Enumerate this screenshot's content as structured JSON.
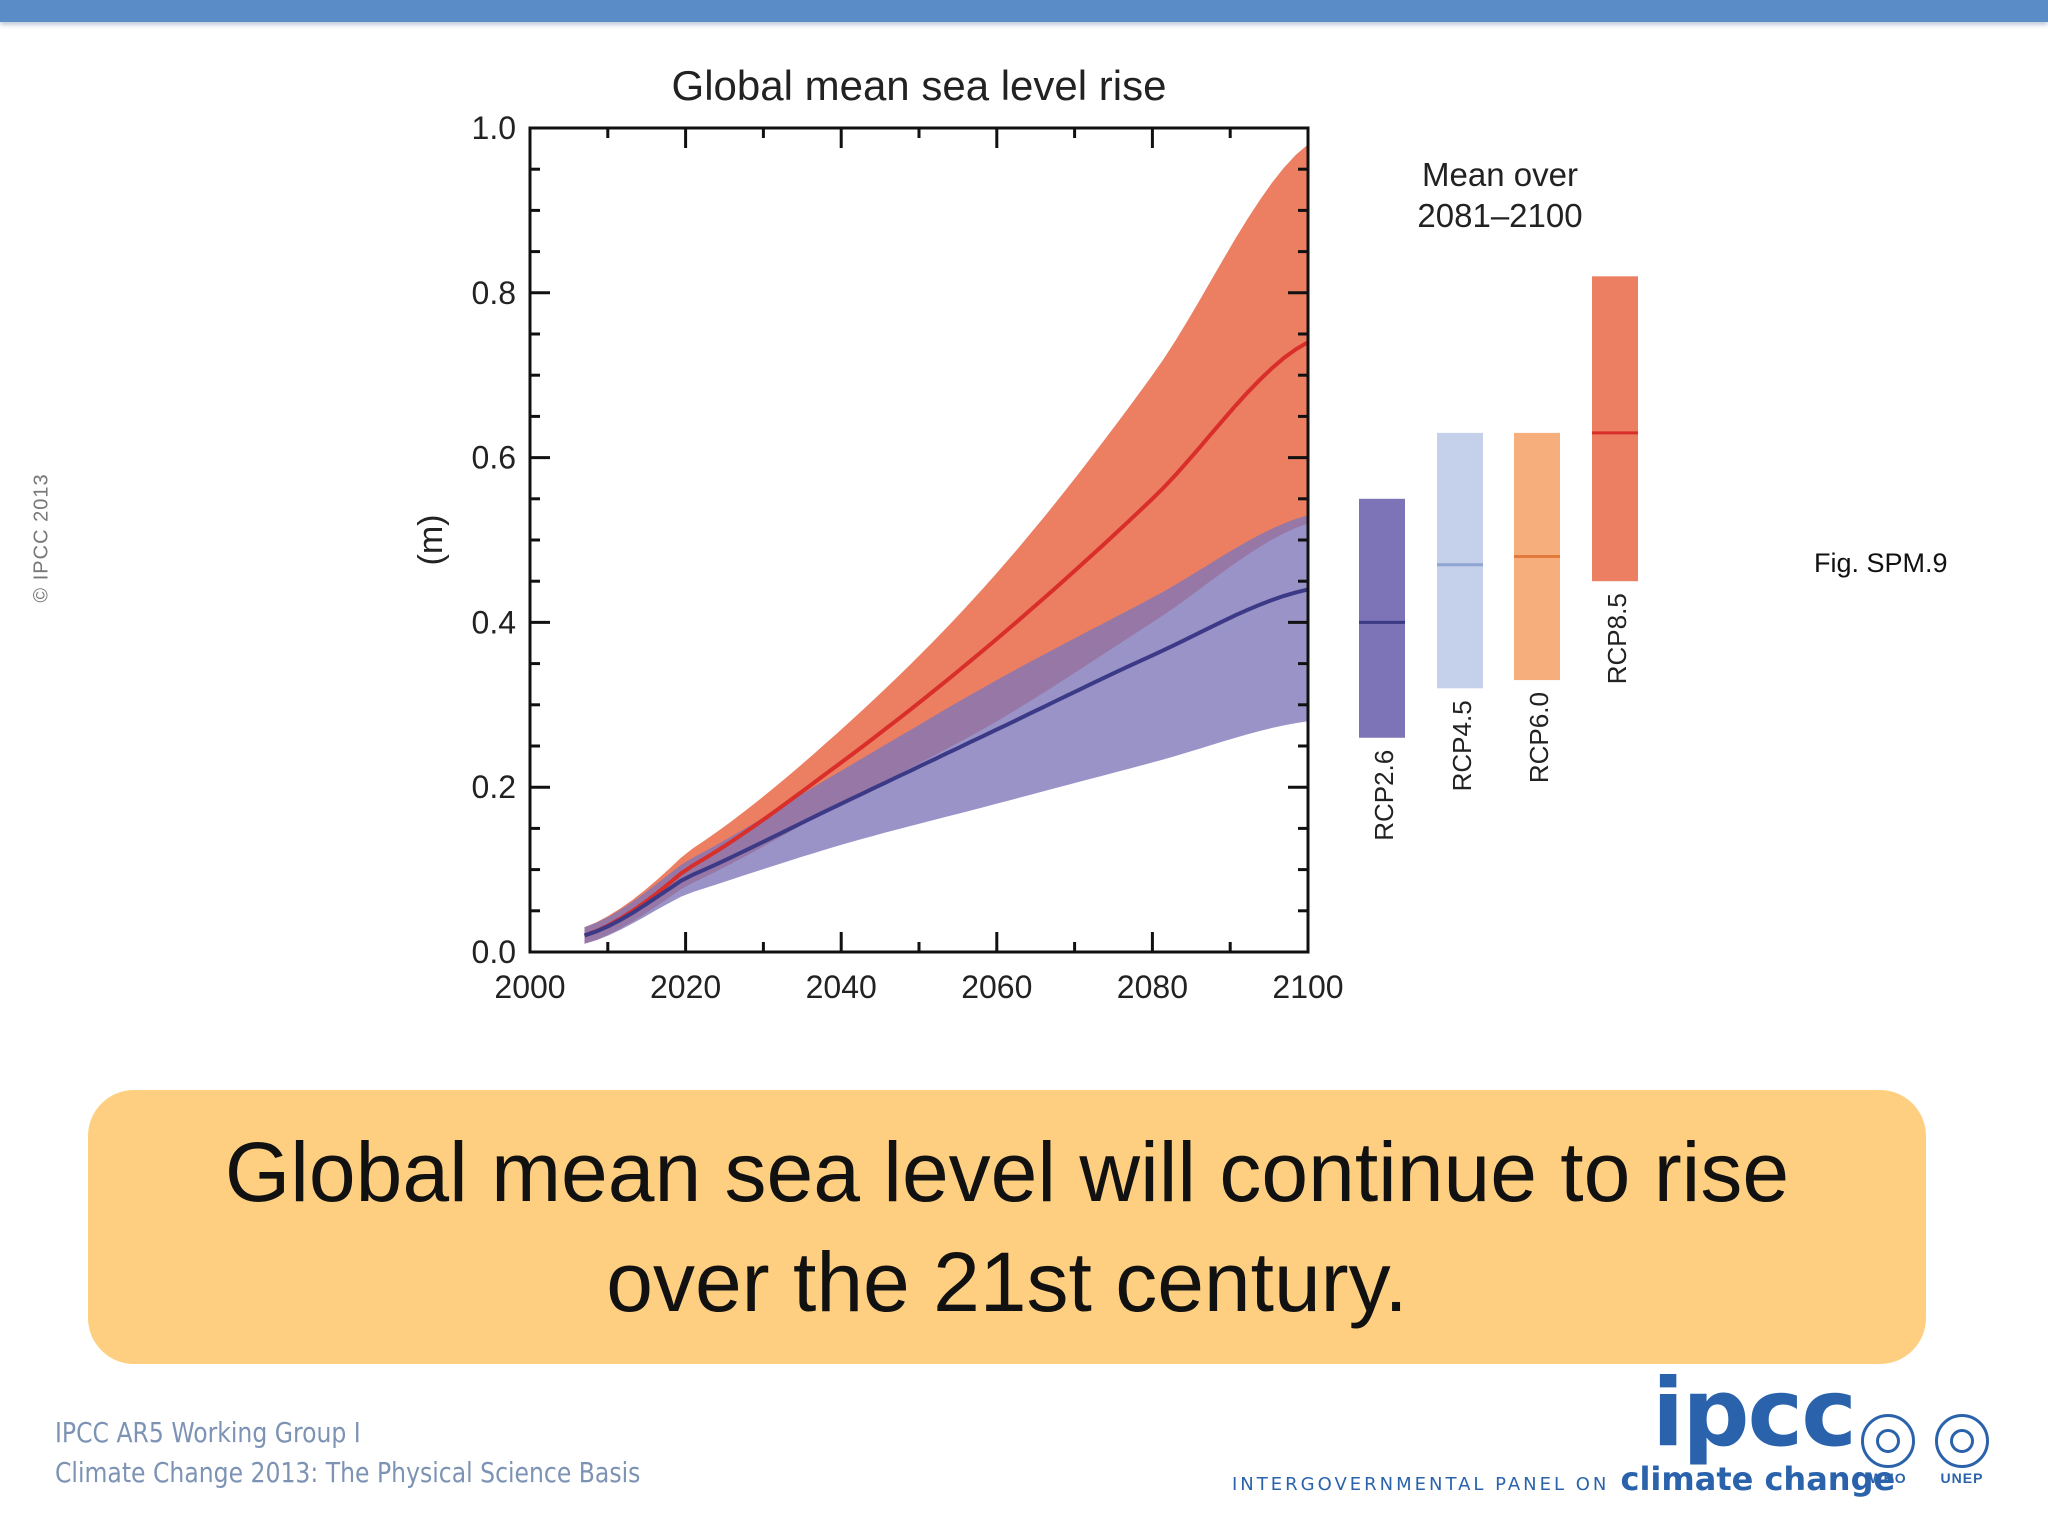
{
  "slide": {
    "copyright": "© IPCC 2013",
    "figure_label": "Fig. SPM.9",
    "banner_text": "Global mean sea level will continue to rise over the 21st century.",
    "footer_line1": "IPCC AR5 Working Group I",
    "footer_line2": "Climate Change 2013: The Physical Science Basis",
    "logo_text": "ipcc",
    "logo_subtitle_small": "INTERGOVERNMENTAL PANEL ON",
    "logo_subtitle_big": "climate change",
    "org_logos": [
      "WHO",
      "UNEP"
    ]
  },
  "colors": {
    "top_bar": "#5a8dc8",
    "banner": "#fecf80",
    "rcp26": "#7d74b8",
    "rcp45": "#c5d1ea",
    "rcp60": "#f6ae7c",
    "rcp85": "#ec7e62",
    "rcp85_line": "#d92e2a",
    "rcp26_line": "#3c3a86"
  },
  "chart_data": {
    "type": "line",
    "title": "Global mean sea level rise",
    "ylabel": "(m)",
    "xlabel": "",
    "xlim": [
      2000,
      2100
    ],
    "ylim": [
      0,
      1.0
    ],
    "x_ticks": [
      "2000",
      "2020",
      "2040",
      "2060",
      "2080",
      "2100"
    ],
    "y_ticks": [
      "0.0",
      "0.2",
      "0.4",
      "0.6",
      "0.8",
      "1.0"
    ],
    "x": [
      2007,
      2020,
      2040,
      2060,
      2080,
      2100
    ],
    "series": [
      {
        "name": "RCP8.5",
        "color": "#d92e2a",
        "band_color": "#ec7e62",
        "mean": [
          0.02,
          0.1,
          0.23,
          0.38,
          0.55,
          0.74
        ],
        "lower": [
          0.01,
          0.08,
          0.18,
          0.28,
          0.4,
          0.52
        ],
        "upper": [
          0.03,
          0.12,
          0.27,
          0.46,
          0.7,
          0.98
        ]
      },
      {
        "name": "RCP2.6",
        "color": "#3c3a86",
        "band_color": "#7d74b8",
        "mean": [
          0.02,
          0.09,
          0.18,
          0.27,
          0.36,
          0.44
        ],
        "lower": [
          0.01,
          0.07,
          0.13,
          0.18,
          0.23,
          0.28
        ],
        "upper": [
          0.03,
          0.11,
          0.22,
          0.33,
          0.43,
          0.53
        ]
      }
    ],
    "inset": {
      "title_line1": "Mean over",
      "title_line2": "2081–2100",
      "bars": [
        {
          "label": "RCP2.6",
          "low": 0.26,
          "mean": 0.4,
          "high": 0.55,
          "color": "#7d74b8",
          "line_color": "#3c3a86"
        },
        {
          "label": "RCP4.5",
          "low": 0.32,
          "mean": 0.47,
          "high": 0.63,
          "color": "#c5d1ea",
          "line_color": "#8ea4d2"
        },
        {
          "label": "RCP6.0",
          "low": 0.33,
          "mean": 0.48,
          "high": 0.63,
          "color": "#f6ae7c",
          "line_color": "#e17a3a"
        },
        {
          "label": "RCP8.5",
          "low": 0.45,
          "mean": 0.63,
          "high": 0.82,
          "color": "#ec7e62",
          "line_color": "#d92e2a"
        }
      ]
    }
  }
}
